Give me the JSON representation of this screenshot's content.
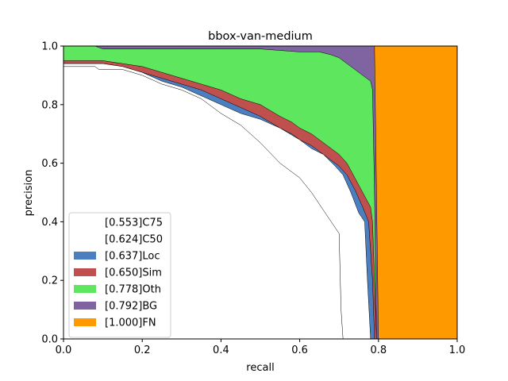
{
  "chart_data": {
    "type": "area",
    "title": "bbox-van-medium",
    "xlabel": "recall",
    "ylabel": "precision",
    "xlim": [
      0,
      1
    ],
    "ylim": [
      0,
      1
    ],
    "x_ticks": [
      "0.0",
      "0.2",
      "0.4",
      "0.6",
      "0.8",
      "1.0"
    ],
    "y_ticks": [
      "0.0",
      "0.2",
      "0.4",
      "0.6",
      "0.8",
      "1.0"
    ],
    "legend_placement": "lower-left",
    "series": [
      {
        "name": "[0.553]C75",
        "color": "#ffffff",
        "points": [
          [
            0,
            1
          ],
          [
            0,
            0.93
          ],
          [
            0.08,
            0.93
          ],
          [
            0.09,
            0.92
          ],
          [
            0.15,
            0.92
          ],
          [
            0.2,
            0.9
          ],
          [
            0.25,
            0.87
          ],
          [
            0.3,
            0.85
          ],
          [
            0.35,
            0.82
          ],
          [
            0.4,
            0.77
          ],
          [
            0.45,
            0.73
          ],
          [
            0.5,
            0.67
          ],
          [
            0.55,
            0.6
          ],
          [
            0.6,
            0.55
          ],
          [
            0.63,
            0.5
          ],
          [
            0.66,
            0.44
          ],
          [
            0.69,
            0.38
          ],
          [
            0.7,
            0.36
          ],
          [
            0.705,
            0.1
          ],
          [
            0.71,
            0
          ]
        ]
      },
      {
        "name": "[0.624]C50",
        "color": "#ffffff",
        "points": [
          [
            0,
            1
          ],
          [
            0,
            0.94
          ],
          [
            0.1,
            0.94
          ],
          [
            0.15,
            0.93
          ],
          [
            0.2,
            0.91
          ],
          [
            0.25,
            0.88
          ],
          [
            0.3,
            0.86
          ],
          [
            0.35,
            0.83
          ],
          [
            0.4,
            0.8
          ],
          [
            0.45,
            0.77
          ],
          [
            0.5,
            0.75
          ],
          [
            0.55,
            0.72
          ],
          [
            0.6,
            0.68
          ],
          [
            0.63,
            0.65
          ],
          [
            0.66,
            0.63
          ],
          [
            0.69,
            0.59
          ],
          [
            0.71,
            0.56
          ],
          [
            0.73,
            0.5
          ],
          [
            0.75,
            0.43
          ],
          [
            0.765,
            0.4
          ],
          [
            0.772,
            0.2
          ],
          [
            0.78,
            0
          ]
        ]
      },
      {
        "name": "[0.637]Loc",
        "color": "#4c7fbf",
        "points": [
          [
            0,
            1
          ],
          [
            0,
            0.94
          ],
          [
            0.1,
            0.94
          ],
          [
            0.15,
            0.93
          ],
          [
            0.2,
            0.91
          ],
          [
            0.25,
            0.89
          ],
          [
            0.3,
            0.87
          ],
          [
            0.35,
            0.85
          ],
          [
            0.4,
            0.82
          ],
          [
            0.45,
            0.79
          ],
          [
            0.5,
            0.76
          ],
          [
            0.55,
            0.72
          ],
          [
            0.58,
            0.7
          ],
          [
            0.6,
            0.68
          ],
          [
            0.63,
            0.66
          ],
          [
            0.65,
            0.64
          ],
          [
            0.68,
            0.61
          ],
          [
            0.7,
            0.59
          ],
          [
            0.72,
            0.56
          ],
          [
            0.74,
            0.51
          ],
          [
            0.76,
            0.45
          ],
          [
            0.775,
            0.4
          ],
          [
            0.785,
            0.2
          ],
          [
            0.79,
            0
          ]
        ]
      },
      {
        "name": "[0.650]Sim",
        "color": "#c0504d",
        "points": [
          [
            0,
            1
          ],
          [
            0,
            0.95
          ],
          [
            0.1,
            0.95
          ],
          [
            0.15,
            0.94
          ],
          [
            0.2,
            0.93
          ],
          [
            0.25,
            0.91
          ],
          [
            0.3,
            0.89
          ],
          [
            0.35,
            0.87
          ],
          [
            0.4,
            0.85
          ],
          [
            0.45,
            0.82
          ],
          [
            0.5,
            0.8
          ],
          [
            0.55,
            0.76
          ],
          [
            0.58,
            0.74
          ],
          [
            0.6,
            0.72
          ],
          [
            0.63,
            0.7
          ],
          [
            0.65,
            0.68
          ],
          [
            0.68,
            0.65
          ],
          [
            0.7,
            0.63
          ],
          [
            0.72,
            0.6
          ],
          [
            0.74,
            0.55
          ],
          [
            0.76,
            0.5
          ],
          [
            0.78,
            0.45
          ],
          [
            0.785,
            0.4
          ],
          [
            0.79,
            0.2
          ],
          [
            0.795,
            0
          ]
        ]
      },
      {
        "name": "[0.778]Oth",
        "color": "#5ee65e",
        "points": [
          [
            0,
            1
          ],
          [
            0.08,
            1
          ],
          [
            0.1,
            0.99
          ],
          [
            0.2,
            0.99
          ],
          [
            0.3,
            0.99
          ],
          [
            0.4,
            0.99
          ],
          [
            0.5,
            0.99
          ],
          [
            0.6,
            0.98
          ],
          [
            0.65,
            0.98
          ],
          [
            0.68,
            0.97
          ],
          [
            0.7,
            0.96
          ],
          [
            0.72,
            0.94
          ],
          [
            0.74,
            0.92
          ],
          [
            0.76,
            0.9
          ],
          [
            0.78,
            0.88
          ],
          [
            0.785,
            0.85
          ],
          [
            0.79,
            0.5
          ],
          [
            0.795,
            0
          ]
        ]
      },
      {
        "name": "[0.792]BG",
        "color": "#8064a2",
        "points": [
          [
            0,
            1
          ],
          [
            0.79,
            1
          ],
          [
            0.795,
            0.5
          ],
          [
            0.8,
            0
          ]
        ]
      },
      {
        "name": "[1.000]FN",
        "color": "#ff9900",
        "points": [
          [
            0,
            1
          ],
          [
            1,
            1
          ],
          [
            1,
            0
          ]
        ]
      }
    ]
  }
}
